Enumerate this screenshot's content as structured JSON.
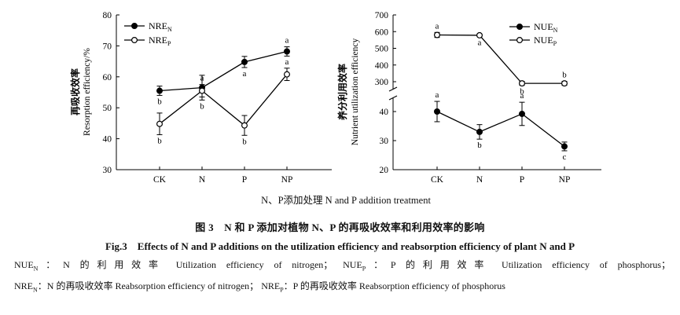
{
  "chart_data": [
    {
      "type": "line",
      "title": "",
      "ylabel_cn": "再吸收效率",
      "ylabel_en": "Resorption efficiency/%",
      "categories": [
        "CK",
        "N",
        "P",
        "NP"
      ],
      "ylim": [
        30,
        80
      ],
      "yticks": [
        30,
        40,
        50,
        60,
        70,
        80
      ],
      "series": [
        {
          "name": "NRE",
          "subscript": "N",
          "marker": "filled",
          "values": [
            55.5,
            56.5,
            64.8,
            68.2
          ],
          "errors": [
            1.5,
            4.0,
            1.8,
            1.5
          ],
          "letters": [
            "b",
            "b",
            "a",
            "a"
          ]
        },
        {
          "name": "NRE",
          "subscript": "P",
          "marker": "open",
          "values": [
            44.8,
            55.5,
            44.3,
            60.8
          ],
          "errors": [
            3.5,
            2.0,
            3.2,
            2.0
          ],
          "letters": [
            "b",
            "a",
            "b",
            "a"
          ]
        }
      ]
    },
    {
      "type": "line",
      "title": "",
      "ylabel_cn": "养分利用效率",
      "ylabel_en": "Nutrient utilization efficiency",
      "categories": [
        "CK",
        "N",
        "P",
        "NP"
      ],
      "broken_axis": true,
      "lower_ylim": [
        20,
        45
      ],
      "lower_yticks": [
        20,
        30,
        40
      ],
      "upper_ylim": [
        250,
        700
      ],
      "upper_yticks": [
        300,
        400,
        500,
        600,
        700
      ],
      "series": [
        {
          "name": "NUE",
          "subscript": "N",
          "marker": "filled",
          "segment": "lower",
          "values": [
            40.0,
            33.0,
            39.2,
            28.0
          ],
          "errors": [
            3.5,
            2.5,
            4.0,
            1.5
          ],
          "letters": [
            "a",
            "b",
            "a",
            "c"
          ]
        },
        {
          "name": "NUE",
          "subscript": "P",
          "marker": "open",
          "segment": "upper",
          "values": [
            580,
            578,
            290,
            290
          ],
          "errors": [
            15,
            8,
            12,
            12
          ],
          "letters": [
            "a",
            "a",
            "b",
            "b"
          ]
        }
      ]
    }
  ],
  "xaxis_title": "N、P添加处理 N and P addition treatment",
  "caption": {
    "cn": "图 3　N 和 P 添加对植物 N、P 的再吸收效率和利用效率的影响",
    "en": "Fig.3　Effects of N and P additions on the utilization efficiency and reabsorption efficiency of plant N and P"
  },
  "notes": [
    {
      "abbr": "NUE",
      "sub": "N",
      "text": "：N 的利用效率  Utilization efficiency of nitrogen；"
    },
    {
      "abbr": "NUE",
      "sub": "P",
      "text": "：P 的利用效率  Utilization efficiency of phosphorus；"
    },
    {
      "abbr": "NRE",
      "sub": "N",
      "text": "：N 的再吸收效率 Reabsorption efficiency of nitrogen；"
    },
    {
      "abbr": "NRE",
      "sub": "P",
      "text": "：P 的再吸收效率 Reabsorption efficiency of phosphorus"
    }
  ]
}
